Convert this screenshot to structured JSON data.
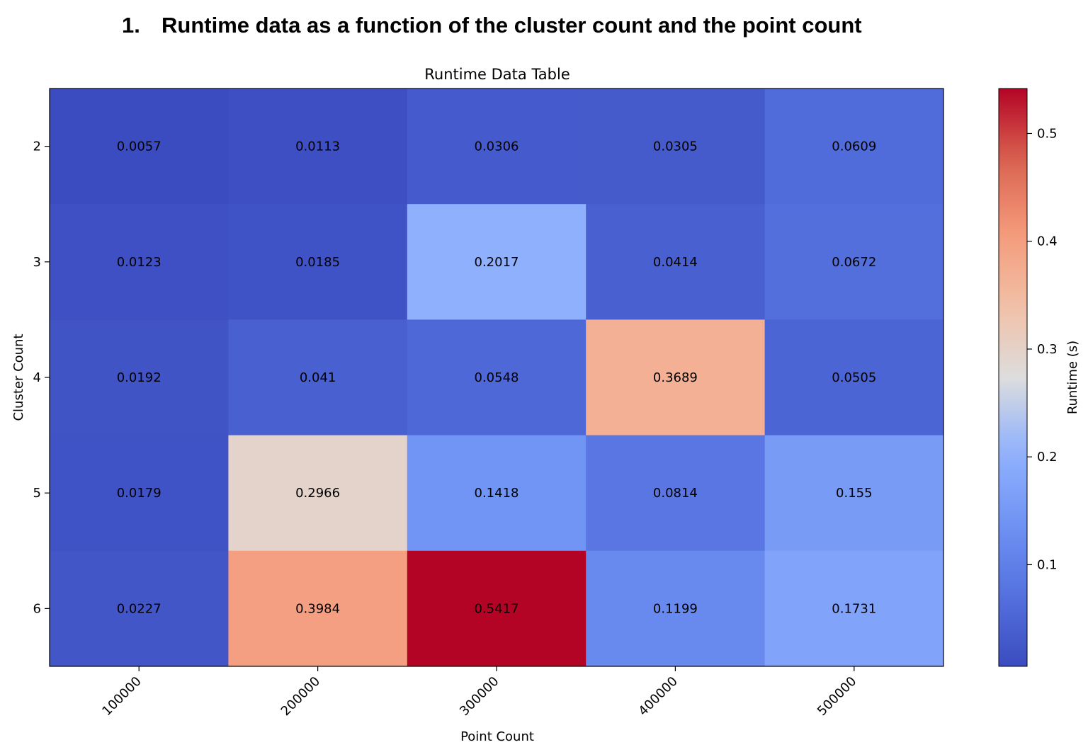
{
  "heading": {
    "number": "1.",
    "text": "Runtime data as a function of the cluster count and the point count"
  },
  "chart_data": {
    "type": "heatmap",
    "title": "Runtime Data Table",
    "xlabel": "Point Count",
    "ylabel": "Cluster Count",
    "x_categories": [
      "100000",
      "200000",
      "300000",
      "400000",
      "500000"
    ],
    "y_categories": [
      "2",
      "3",
      "4",
      "5",
      "6"
    ],
    "values": [
      [
        0.0057,
        0.0113,
        0.0306,
        0.0305,
        0.0609
      ],
      [
        0.0123,
        0.0185,
        0.2017,
        0.0414,
        0.0672
      ],
      [
        0.0192,
        0.041,
        0.0548,
        0.3689,
        0.0505
      ],
      [
        0.0179,
        0.2966,
        0.1418,
        0.0814,
        0.155
      ],
      [
        0.0227,
        0.3984,
        0.5417,
        0.1199,
        0.1731
      ]
    ],
    "cell_labels": [
      [
        "0.0057",
        "0.0113",
        "0.0306",
        "0.0305",
        "0.0609"
      ],
      [
        "0.0123",
        "0.0185",
        "0.2017",
        "0.0414",
        "0.0672"
      ],
      [
        "0.0192",
        "0.041",
        "0.0548",
        "0.3689",
        "0.0505"
      ],
      [
        "0.0179",
        "0.2966",
        "0.1418",
        "0.0814",
        "0.155"
      ],
      [
        "0.0227",
        "0.3984",
        "0.5417",
        "0.1199",
        "0.1731"
      ]
    ],
    "colormap": "coolwarm",
    "color_range": [
      0.0057,
      0.5417
    ],
    "colorbar": {
      "label": "Runtime (s)",
      "ticks": [
        0.1,
        0.2,
        0.3,
        0.4,
        0.5
      ],
      "tick_labels": [
        "0.1",
        "0.2",
        "0.3",
        "0.4",
        "0.5"
      ],
      "placement": "right"
    },
    "x_tick_rotation": 45
  }
}
